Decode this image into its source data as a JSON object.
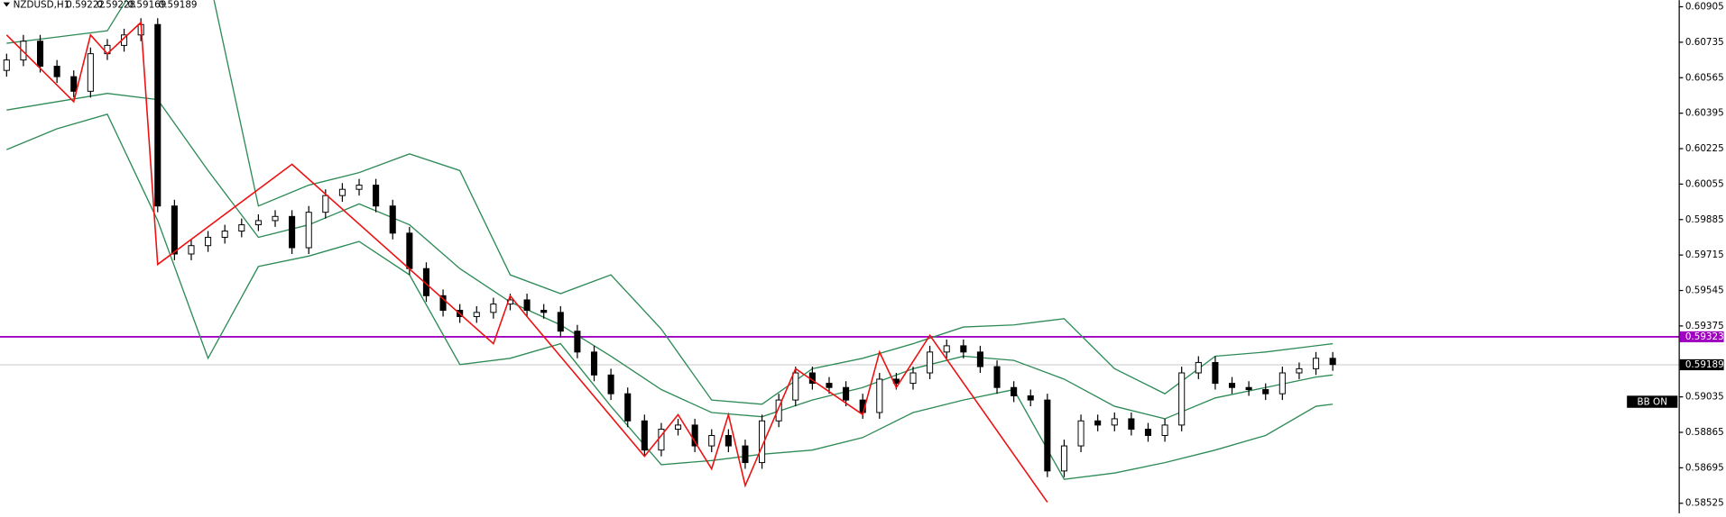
{
  "chart_data": {
    "type": "candlestick",
    "symbol": "NZDUSD,H1",
    "quote": [
      0.59222,
      0.59228,
      0.59169,
      0.59189
    ],
    "ylim": [
      0.58477,
      0.60937
    ],
    "yticks": [
      0.60905,
      0.60735,
      0.60565,
      0.60395,
      0.60225,
      0.60055,
      0.59885,
      0.59715,
      0.59545,
      0.59375,
      0.59035,
      0.58865,
      0.58695,
      0.58525
    ],
    "up_color": "#ffffff",
    "down_color": "#000000",
    "open": [
      0.606,
      0.6065,
      0.6074,
      0.6062,
      0.6057,
      0.605,
      0.6068,
      0.6072,
      0.6077,
      0.6082,
      0.5995,
      0.5972,
      0.5976,
      0.598,
      0.5983,
      0.5986,
      0.5988,
      0.599,
      0.5975,
      0.5992,
      0.6,
      0.6003,
      0.6005,
      0.5995,
      0.5982,
      0.5965,
      0.5952,
      0.5945,
      0.5942,
      0.5944,
      0.5948,
      0.595,
      0.5945,
      0.5944,
      0.5935,
      0.5925,
      0.5914,
      0.5905,
      0.5892,
      0.5878,
      0.5888,
      0.589,
      0.588,
      0.5885,
      0.588,
      0.5872,
      0.5892,
      0.5902,
      0.5915,
      0.591,
      0.5908,
      0.5902,
      0.5896,
      0.5912,
      0.591,
      0.5915,
      0.5925,
      0.5928,
      0.5925,
      0.5918,
      0.5908,
      0.5904,
      0.5902,
      0.5868,
      0.588,
      0.5892,
      0.589,
      0.5893,
      0.5888,
      0.5885,
      0.589,
      0.5915,
      0.592,
      0.591,
      0.5908,
      0.5907,
      0.5905,
      0.5915,
      0.5917,
      0.5922
    ],
    "high": [
      0.6068,
      0.6077,
      0.6077,
      0.6065,
      0.606,
      0.6071,
      0.6075,
      0.608,
      0.6085,
      0.6085,
      0.5998,
      0.5979,
      0.5983,
      0.5986,
      0.5989,
      0.5991,
      0.5993,
      0.5993,
      0.5995,
      0.6003,
      0.6006,
      0.6008,
      0.6008,
      0.5998,
      0.5985,
      0.5968,
      0.5955,
      0.5948,
      0.5947,
      0.5951,
      0.5953,
      0.5953,
      0.5948,
      0.5947,
      0.5938,
      0.5928,
      0.5917,
      0.5908,
      0.5895,
      0.5891,
      0.5893,
      0.5893,
      0.5888,
      0.5888,
      0.5883,
      0.5895,
      0.5905,
      0.5918,
      0.5918,
      0.5913,
      0.5911,
      0.5905,
      0.5915,
      0.5915,
      0.5918,
      0.5928,
      0.5931,
      0.5931,
      0.5928,
      0.5921,
      0.5911,
      0.5907,
      0.5905,
      0.5883,
      0.5895,
      0.5895,
      0.5896,
      0.5896,
      0.5891,
      0.5893,
      0.5918,
      0.5923,
      0.5923,
      0.5913,
      0.5911,
      0.591,
      0.5918,
      0.592,
      0.5925,
      0.5925
    ],
    "low": [
      0.6057,
      0.6062,
      0.6059,
      0.6054,
      0.6047,
      0.6047,
      0.6065,
      0.6069,
      0.6074,
      0.5992,
      0.5969,
      0.5969,
      0.5973,
      0.5977,
      0.598,
      0.5983,
      0.5985,
      0.5972,
      0.5972,
      0.5989,
      0.5997,
      0.6,
      0.5992,
      0.5979,
      0.5962,
      0.5949,
      0.5942,
      0.5939,
      0.5939,
      0.5941,
      0.5945,
      0.5942,
      0.5941,
      0.5932,
      0.5922,
      0.5911,
      0.5902,
      0.5889,
      0.5875,
      0.5875,
      0.5885,
      0.5877,
      0.5877,
      0.5877,
      0.5869,
      0.5869,
      0.5889,
      0.5899,
      0.5907,
      0.5905,
      0.5899,
      0.5893,
      0.5893,
      0.5907,
      0.5907,
      0.5912,
      0.5922,
      0.5922,
      0.5915,
      0.5905,
      0.5901,
      0.5899,
      0.5865,
      0.5865,
      0.5877,
      0.5887,
      0.5887,
      0.5885,
      0.5882,
      0.5882,
      0.5887,
      0.5912,
      0.5907,
      0.5905,
      0.5904,
      0.5902,
      0.5902,
      0.5912,
      0.5914,
      0.5916
    ],
    "close": [
      0.6065,
      0.6074,
      0.6062,
      0.6057,
      0.605,
      0.6068,
      0.6072,
      0.6077,
      0.6082,
      0.5995,
      0.5972,
      0.5976,
      0.598,
      0.5983,
      0.5986,
      0.5988,
      0.599,
      0.5975,
      0.5992,
      0.6,
      0.6003,
      0.6005,
      0.5995,
      0.5982,
      0.5965,
      0.5952,
      0.5945,
      0.5942,
      0.5944,
      0.5948,
      0.595,
      0.5945,
      0.5944,
      0.5935,
      0.5925,
      0.5914,
      0.5905,
      0.5892,
      0.5878,
      0.5888,
      0.589,
      0.588,
      0.5885,
      0.588,
      0.5872,
      0.5892,
      0.5902,
      0.5915,
      0.591,
      0.5908,
      0.5902,
      0.5896,
      0.5912,
      0.591,
      0.5915,
      0.5925,
      0.5928,
      0.5925,
      0.5918,
      0.5908,
      0.5904,
      0.5902,
      0.5868,
      0.588,
      0.5892,
      0.589,
      0.5893,
      0.5888,
      0.5885,
      0.589,
      0.5915,
      0.592,
      0.591,
      0.5908,
      0.5907,
      0.5905,
      0.5915,
      0.5917,
      0.5922,
      0.5919
    ],
    "bands": {
      "color": "#2e8b57",
      "x": [
        0,
        3,
        6,
        9,
        12,
        15,
        18,
        21,
        24,
        27,
        30,
        33,
        36,
        39,
        42,
        45,
        48,
        51,
        54,
        57,
        60,
        63,
        66,
        69,
        72,
        75,
        78,
        79
      ],
      "series": [
        {
          "values": [
            0.6073,
            0.6076,
            0.6079,
            0.6118,
            0.6107,
            0.5995,
            0.6005,
            0.6011,
            0.602,
            0.6012,
            0.5962,
            0.5953,
            0.5962,
            0.5936,
            0.5902,
            0.59,
            0.5917,
            0.5922,
            0.5929,
            0.5937,
            0.5938,
            0.5941,
            0.5917,
            0.5905,
            0.5923,
            0.5925,
            0.5928,
            0.5929
          ]
        },
        {
          "values": [
            0.6041,
            0.6045,
            0.6049,
            0.6046,
            0.6012,
            0.598,
            0.5986,
            0.5996,
            0.5986,
            0.5965,
            0.5949,
            0.5938,
            0.5923,
            0.5907,
            0.5896,
            0.5894,
            0.5902,
            0.5908,
            0.5917,
            0.5923,
            0.5921,
            0.5912,
            0.5899,
            0.5893,
            0.5903,
            0.5908,
            0.5913,
            0.5914
          ]
        },
        {
          "values": [
            0.6022,
            0.6032,
            0.6039,
            0.5988,
            0.5922,
            0.5966,
            0.5971,
            0.5978,
            0.5962,
            0.5919,
            0.5922,
            0.5929,
            0.5899,
            0.5871,
            0.5873,
            0.5876,
            0.5878,
            0.5884,
            0.5896,
            0.5902,
            0.5907,
            0.5864,
            0.5867,
            0.5872,
            0.5878,
            0.5885,
            0.5899,
            0.59
          ]
        }
      ]
    },
    "zigzag": {
      "color": "#ee1111",
      "x": [
        0,
        4,
        5,
        6,
        8,
        9,
        17,
        29,
        30,
        31,
        38,
        40,
        42,
        43,
        44,
        47,
        51,
        52,
        53,
        55,
        62
      ],
      "values": [
        0.6077,
        0.6045,
        0.6077,
        0.6068,
        0.6083,
        0.5967,
        0.6015,
        0.5929,
        0.5952,
        0.5942,
        0.5875,
        0.5895,
        0.5869,
        0.5895,
        0.5861,
        0.5917,
        0.5895,
        0.5925,
        0.5908,
        0.5933,
        0.5853
      ]
    },
    "levels": [
      {
        "value": 0.59323,
        "line_color": "#a000c0",
        "label_color": "#a000c0"
      },
      {
        "value": 0.59189,
        "line_color": "#c8c8c8",
        "label_color": "#000000"
      }
    ],
    "status": "BB ON"
  }
}
